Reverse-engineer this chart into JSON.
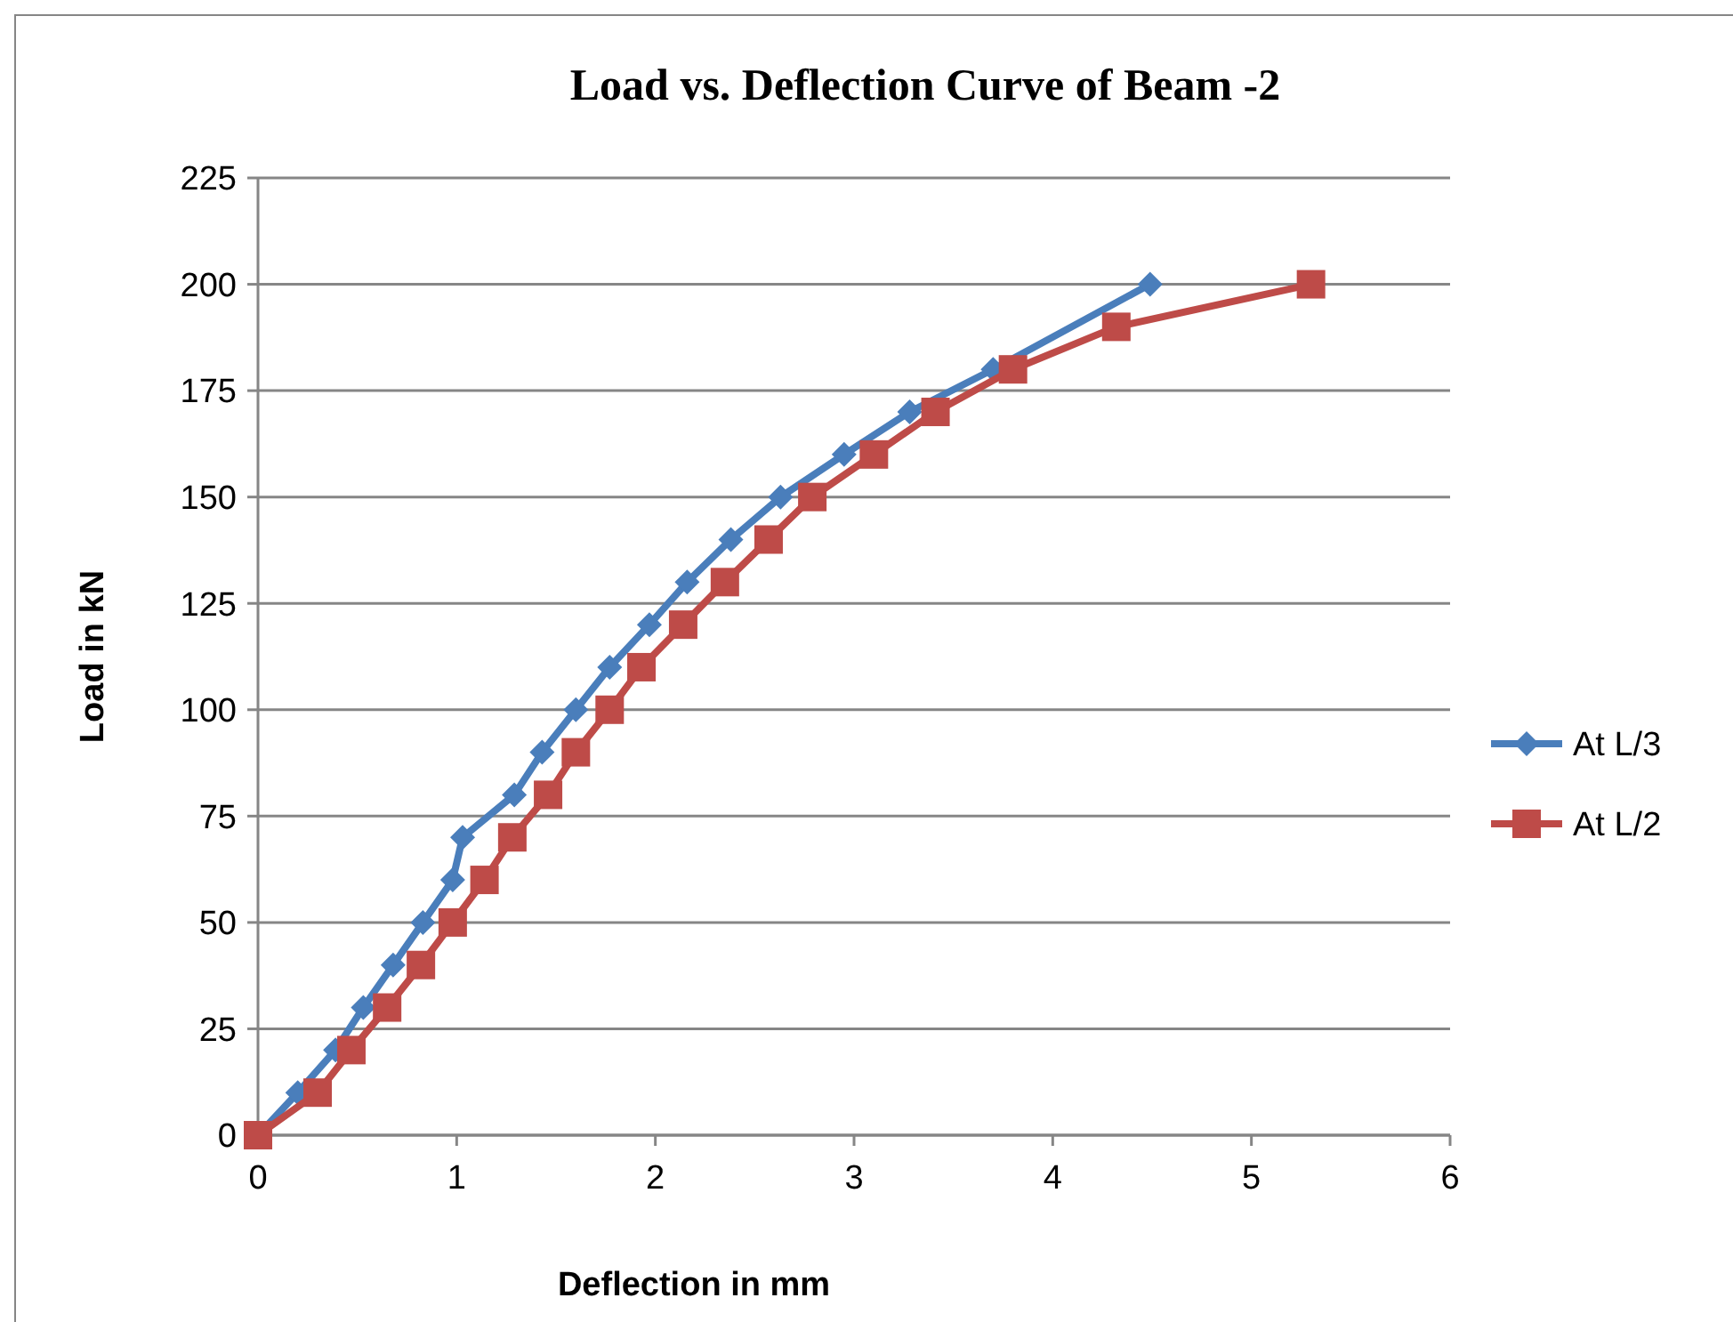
{
  "chart_data": {
    "type": "line",
    "title": "Load vs. Deflection Curve of Beam -2",
    "xlabel": "Deflection in mm",
    "ylabel": "Load in kN",
    "xlim": [
      0,
      6
    ],
    "xticks": [
      0,
      1,
      2,
      3,
      4,
      5,
      6
    ],
    "ylim": [
      0,
      225
    ],
    "yticks": [
      0,
      25,
      50,
      75,
      100,
      125,
      150,
      175,
      200,
      225
    ],
    "grid": "y",
    "legend": "right",
    "series": [
      {
        "name": "At L/3",
        "color": "#4a7ebb",
        "marker": "diamond",
        "x": [
          0,
          0.2,
          0.39,
          0.53,
          0.68,
          0.83,
          0.98,
          1.03,
          1.29,
          1.43,
          1.6,
          1.77,
          1.97,
          2.16,
          2.38,
          2.63,
          2.95,
          3.28,
          3.7,
          4.3,
          4.49
        ],
        "values": [
          0,
          10,
          20,
          30,
          40,
          50,
          60,
          70,
          80,
          90,
          100,
          110,
          120,
          130,
          140,
          150,
          160,
          170,
          180,
          null,
          200
        ]
      },
      {
        "name": "At L/2",
        "color": "#be4b48",
        "marker": "square",
        "x": [
          0,
          0.3,
          0.47,
          0.65,
          0.82,
          0.98,
          1.14,
          1.28,
          1.46,
          1.6,
          1.77,
          1.93,
          2.14,
          2.35,
          2.57,
          2.79,
          3.1,
          3.41,
          3.8,
          4.32,
          5.3
        ],
        "values": [
          0,
          10,
          20,
          30,
          40,
          50,
          60,
          70,
          80,
          90,
          100,
          110,
          120,
          130,
          140,
          150,
          160,
          170,
          180,
          190,
          200
        ]
      }
    ]
  }
}
